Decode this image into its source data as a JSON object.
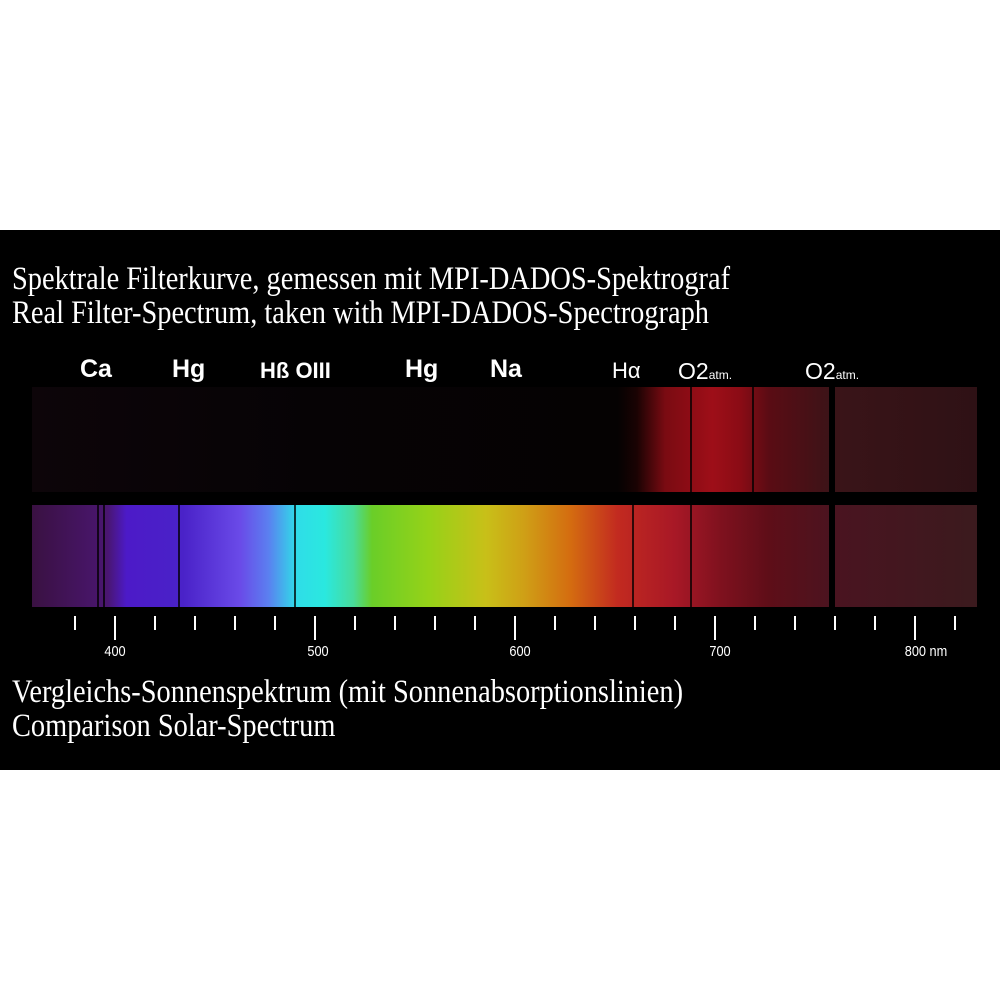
{
  "title": {
    "line1": "Spektrale Filterkurve, gemessen mit MPI-DADOS-Spektrograf",
    "line2": "Real Filter-Spectrum, taken with MPI-DADOS-Spectrograph"
  },
  "lines": [
    {
      "label": "Ca",
      "sub": ""
    },
    {
      "label": "Hg",
      "sub": ""
    },
    {
      "label": "Hß OIII",
      "sub": ""
    },
    {
      "label": "Hg",
      "sub": ""
    },
    {
      "label": "Na",
      "sub": ""
    },
    {
      "label": "Hα",
      "sub": ""
    },
    {
      "label": "O2",
      "sub": "atm."
    },
    {
      "label": "O2",
      "sub": "atm."
    }
  ],
  "axis": {
    "unit": "nm",
    "labels": [
      "400",
      "500",
      "600",
      "700",
      "800 nm"
    ],
    "range_nm": [
      360,
      830
    ],
    "minor_step_nm": 20
  },
  "caption": {
    "line1": "Vergleichs-Sonnenspektrum (mit Sonnenabsorptionslinien)",
    "line2": "Comparison Solar-Spectrum"
  },
  "colors": {
    "background": "#000000",
    "text": "#ffffff"
  }
}
